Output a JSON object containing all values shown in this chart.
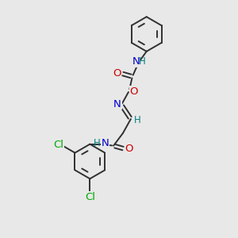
{
  "background_color": "#e8e8e8",
  "atom_colors": {
    "C": "#303030",
    "N": "#0000cc",
    "O": "#cc0000",
    "Cl": "#00aa00",
    "H": "#008080"
  },
  "bond_color": "#303030",
  "bond_lw": 1.4,
  "figsize": [
    3.0,
    3.0
  ],
  "dpi": 100,
  "font_size_atom": 9.5,
  "font_size_h": 8.5,
  "ring_r": 22
}
